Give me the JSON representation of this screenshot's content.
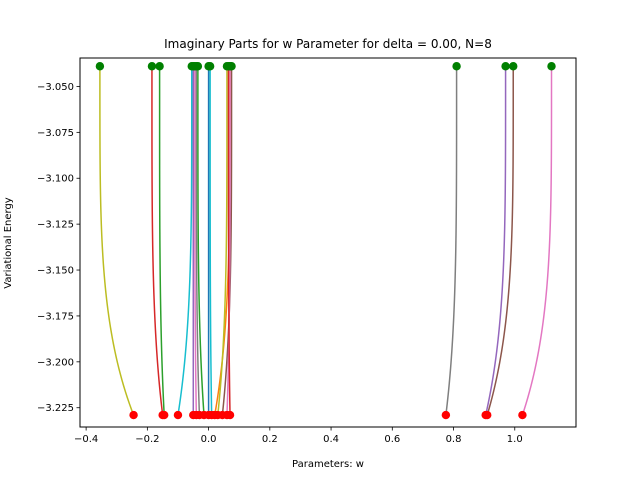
{
  "chart_data": {
    "type": "line",
    "title": "Imaginary Parts for w Parameter for delta = 0.00, N=8",
    "xlabel": "Parameters: w",
    "ylabel": "Variational Energy",
    "xlim": [
      -0.42,
      1.2
    ],
    "ylim": [
      -3.2355,
      -3.0345
    ],
    "xticks": [
      -0.4,
      -0.2,
      0.0,
      0.2,
      0.4,
      0.6,
      0.8,
      1.0
    ],
    "xtick_labels": [
      "−0.4",
      "−0.2",
      "0.0",
      "0.2",
      "0.4",
      "0.6",
      "0.8",
      "1.0"
    ],
    "yticks": [
      -3.05,
      -3.075,
      -3.1,
      -3.125,
      -3.15,
      -3.175,
      -3.2,
      -3.225
    ],
    "ytick_labels": [
      "−3.050",
      "−3.075",
      "−3.100",
      "−3.125",
      "−3.150",
      "−3.175",
      "−3.200",
      "−3.225"
    ],
    "y_start": -3.229,
    "y_end": -3.039,
    "start_marker_color": "#ff0000",
    "end_marker_color": "#008000",
    "grid": false,
    "series": [
      {
        "x_start": -0.245,
        "x_end": -0.355,
        "color": "#bcbd22"
      },
      {
        "x_start": -0.15,
        "x_end": -0.185,
        "color": "#d62728"
      },
      {
        "x_start": -0.145,
        "x_end": -0.16,
        "color": "#2ca02c"
      },
      {
        "x_start": -0.1,
        "x_end": -0.055,
        "color": "#17becf"
      },
      {
        "x_start": -0.05,
        "x_end": -0.05,
        "color": "#9467bd"
      },
      {
        "x_start": -0.04,
        "x_end": -0.045,
        "color": "#e377c2"
      },
      {
        "x_start": -0.03,
        "x_end": -0.04,
        "color": "#7f7f7f"
      },
      {
        "x_start": -0.015,
        "x_end": -0.035,
        "color": "#2ca02c"
      },
      {
        "x_start": 0.0,
        "x_end": 0.0,
        "color": "#1f77b4"
      },
      {
        "x_start": 0.01,
        "x_end": 0.005,
        "color": "#17becf"
      },
      {
        "x_start": 0.02,
        "x_end": 0.07,
        "color": "#ff7f0e"
      },
      {
        "x_start": 0.03,
        "x_end": 0.06,
        "color": "#bcbd22"
      },
      {
        "x_start": 0.045,
        "x_end": 0.075,
        "color": "#8c564b"
      },
      {
        "x_start": 0.06,
        "x_end": 0.07,
        "color": "#e377c2"
      },
      {
        "x_start": 0.07,
        "x_end": 0.065,
        "color": "#d62728"
      },
      {
        "x_start": 0.775,
        "x_end": 0.81,
        "color": "#7f7f7f"
      },
      {
        "x_start": 0.905,
        "x_end": 0.97,
        "color": "#9467bd"
      },
      {
        "x_start": 0.91,
        "x_end": 0.995,
        "color": "#8c564b"
      },
      {
        "x_start": 1.025,
        "x_end": 1.12,
        "color": "#e377c2"
      }
    ]
  }
}
